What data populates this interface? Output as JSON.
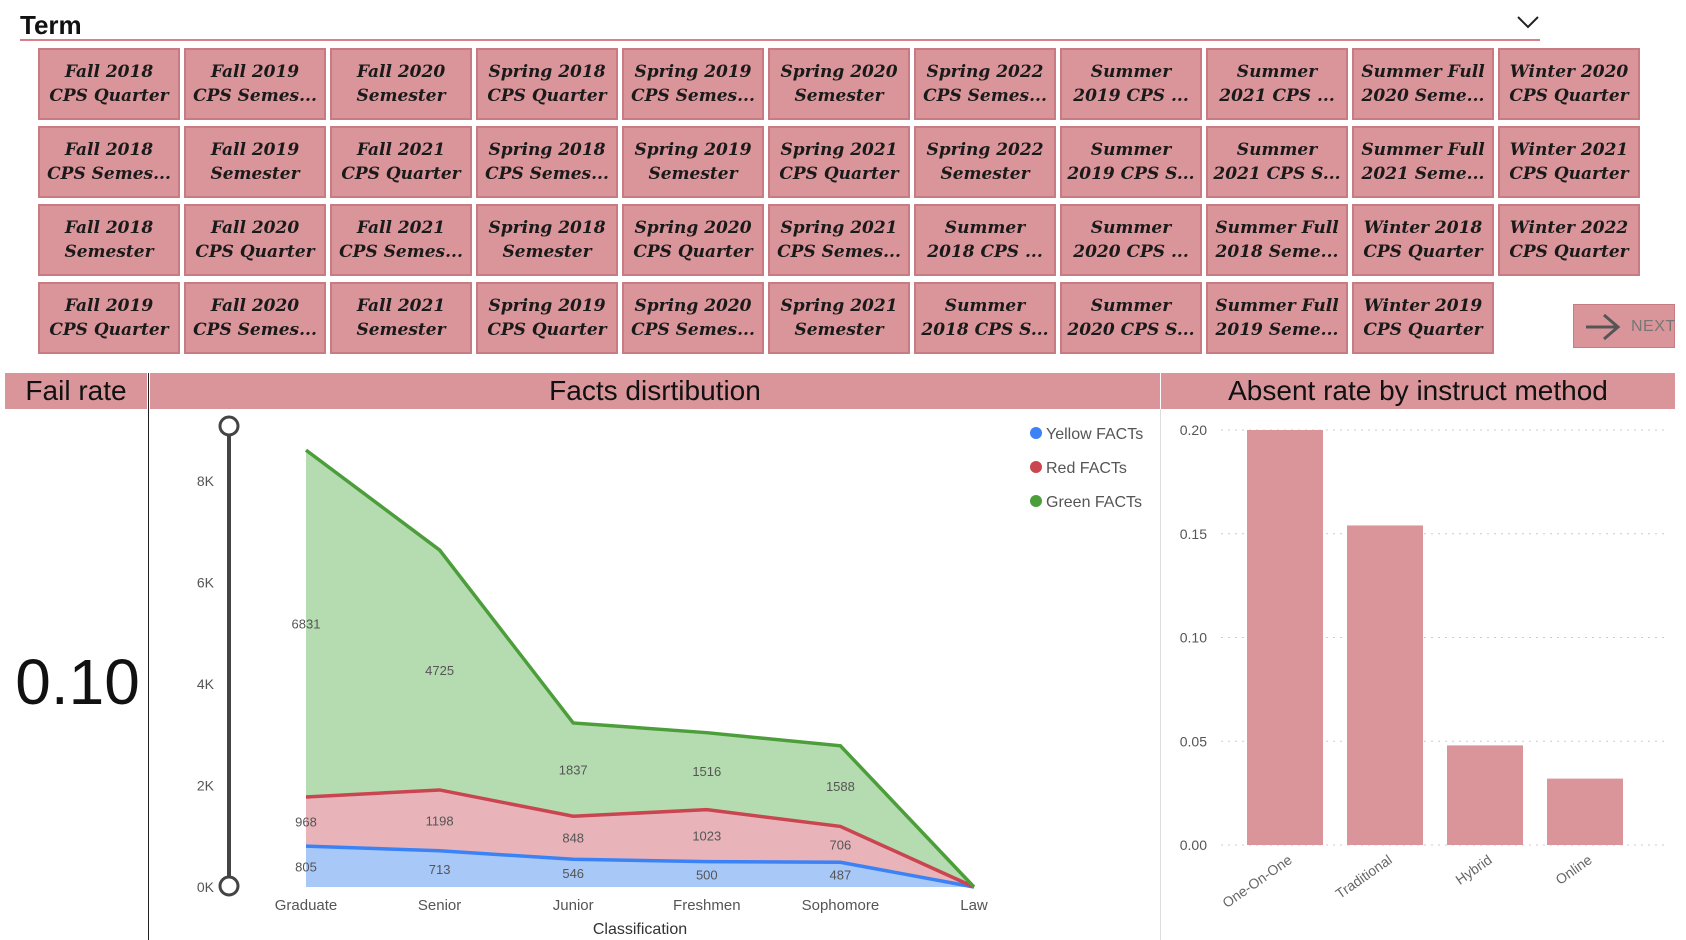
{
  "term_slicer": {
    "title": "Term",
    "tiles": [
      "Fall 2018\nCPS Quarter",
      "Fall 2019\nCPS Semes...",
      "Fall 2020\nSemester",
      "Spring 2018\nCPS Quarter",
      "Spring 2019\nCPS Semes...",
      "Spring 2020\nSemester",
      "Spring 2022\nCPS Semes...",
      "Summer\n2019 CPS ...",
      "Summer\n2021 CPS ...",
      "Summer Full\n2020 Seme...",
      "Winter 2020\nCPS Quarter",
      "Fall 2018\nCPS Semes...",
      "Fall 2019\nSemester",
      "Fall 2021\nCPS Quarter",
      "Spring 2018\nCPS Semes...",
      "Spring 2019\nSemester",
      "Spring 2021\nCPS Quarter",
      "Spring 2022\nSemester",
      "Summer\n2019 CPS S...",
      "Summer\n2021 CPS S...",
      "Summer Full\n2021 Seme...",
      "Winter 2021\nCPS Quarter",
      "Fall 2018\nSemester",
      "Fall 2020\nCPS Quarter",
      "Fall 2021\nCPS Semes...",
      "Spring 2018\nSemester",
      "Spring 2020\nCPS Quarter",
      "Spring 2021\nCPS Semes...",
      "Summer\n2018 CPS ...",
      "Summer\n2020 CPS ...",
      "Summer Full\n2018 Seme...",
      "Winter 2018\nCPS Quarter",
      "Winter 2022\nCPS Quarter",
      "Fall 2019\nCPS Quarter",
      "Fall 2020\nCPS Semes...",
      "Fall 2021\nSemester",
      "Spring 2019\nCPS Quarter",
      "Spring 2020\nCPS Semes...",
      "Spring 2021\nSemester",
      "Summer\n2018 CPS S...",
      "Summer\n2020 CPS S...",
      "Summer Full\n2019 Seme...",
      "Winter 2019\nCPS Quarter"
    ],
    "next_label": "NEXT"
  },
  "fail_rate": {
    "title": "Fail rate",
    "value": "0.10"
  },
  "colors": {
    "tile": "#d9959a",
    "header": "#d9959a",
    "yellow": "#3b82f6",
    "red": "#c9454f",
    "green": "#4c9e3a",
    "bar": "#d9959a"
  },
  "chart_data": [
    {
      "type": "area",
      "title": "Facts disrtibution",
      "xlabel": "Classification",
      "ylabel": "",
      "categories": [
        "Graduate",
        "Senior",
        "Junior",
        "Freshmen",
        "Sophomore",
        "Law"
      ],
      "y_ticks": [
        "0K",
        "2K",
        "4K",
        "6K",
        "8K"
      ],
      "ylim": [
        0,
        9000
      ],
      "stacked": true,
      "legend": "top-right",
      "series": [
        {
          "name": "Yellow FACTs",
          "values": [
            805,
            713,
            546,
            500,
            487,
            0
          ],
          "labels": [
            "805",
            "713",
            "546",
            "500",
            "487",
            ""
          ]
        },
        {
          "name": "Red FACTs",
          "values": [
            968,
            1198,
            848,
            1023,
            706,
            0
          ],
          "labels": [
            "968",
            "1198",
            "848",
            "1023",
            "706",
            ""
          ]
        },
        {
          "name": "Green FACTs",
          "values": [
            6831,
            4725,
            1837,
            1516,
            1588,
            0
          ],
          "labels": [
            "6831",
            "4725",
            "1837",
            "1516",
            "1588",
            ""
          ]
        }
      ]
    },
    {
      "type": "bar",
      "title": "Absent rate by instruct method",
      "xlabel": "",
      "ylabel": "",
      "categories": [
        "One-On-One",
        "Traditional",
        "Hybrid",
        "Online"
      ],
      "values": [
        0.2,
        0.154,
        0.048,
        0.032
      ],
      "y_ticks": [
        "0.00",
        "0.05",
        "0.10",
        "0.15",
        "0.20"
      ],
      "ylim": [
        0,
        0.2
      ],
      "grid": true
    }
  ]
}
